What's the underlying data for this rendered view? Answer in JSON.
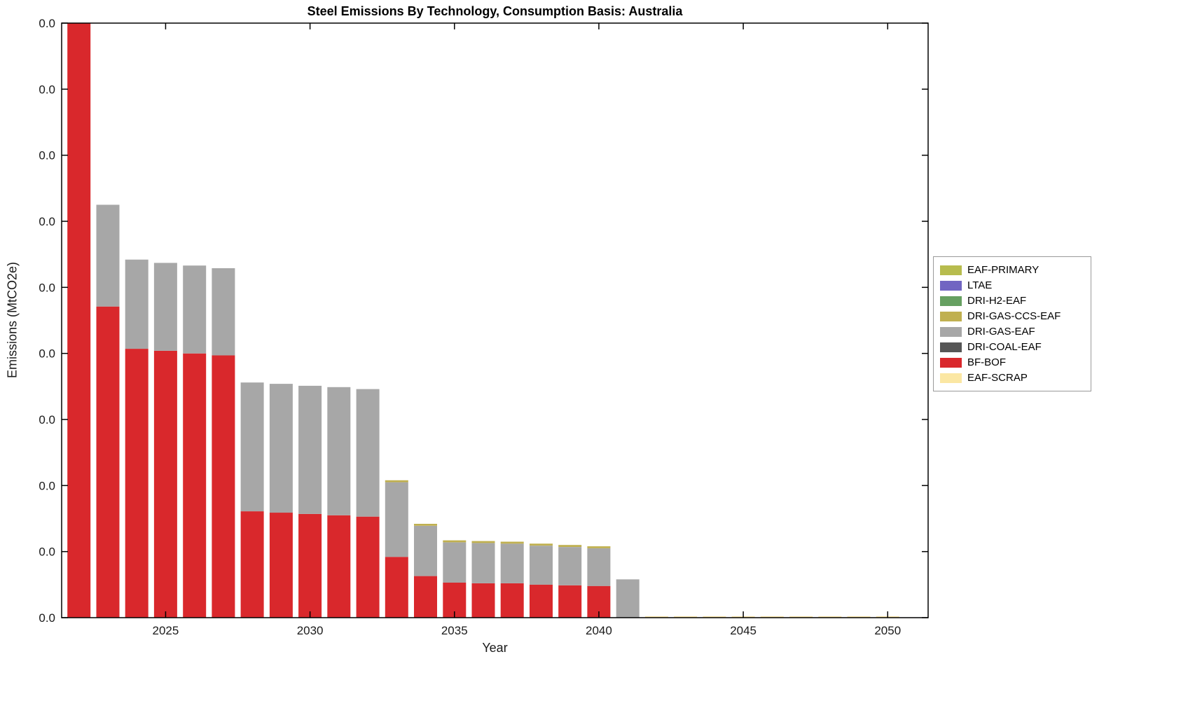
{
  "chart_data": {
    "type": "bar",
    "stacked": true,
    "title": "Steel Emissions By Technology, Consumption Basis: Australia",
    "xlabel": "Year",
    "ylabel": "Emissions (MtCO2e)",
    "x_ticks": [
      2025,
      2030,
      2035,
      2040,
      2045,
      2050
    ],
    "y_tick_labels": [
      "0.0",
      "0.0",
      "0.0",
      "0.0",
      "0.0",
      "0.0",
      "0.0",
      "0.0",
      "0.0",
      "0.0"
    ],
    "x_range": [
      2021.4,
      2051.4
    ],
    "y_range": [
      0,
      9
    ],
    "grid": false,
    "legend_position": "right-outside",
    "years": [
      2022,
      2023,
      2024,
      2025,
      2026,
      2027,
      2028,
      2029,
      2030,
      2031,
      2032,
      2033,
      2034,
      2035,
      2036,
      2037,
      2038,
      2039,
      2040,
      2041,
      2042,
      2043,
      2044,
      2045,
      2046,
      2047,
      2048,
      2049,
      2050
    ],
    "series": [
      {
        "name": "EAF-SCRAP",
        "color": "#fbe7a3",
        "values": [
          0,
          0,
          0,
          0,
          0,
          0,
          0,
          0,
          0,
          0,
          0,
          0,
          0,
          0,
          0,
          0,
          0,
          0,
          0,
          0,
          0.02,
          0.02,
          0.02,
          0.02,
          0.02,
          0.02,
          0.02,
          0.02,
          0.02
        ]
      },
      {
        "name": "BF-BOF",
        "color": "#d9282c",
        "values": [
          9.05,
          4.71,
          4.07,
          4.04,
          4.0,
          3.97,
          1.61,
          1.59,
          1.57,
          1.55,
          1.53,
          0.92,
          0.63,
          0.53,
          0.52,
          0.52,
          0.5,
          0.49,
          0.48,
          0,
          0,
          0,
          0,
          0,
          0,
          0,
          0,
          0,
          0
        ]
      },
      {
        "name": "DRI-COAL-EAF",
        "color": "#565656",
        "values": [
          0,
          0,
          0,
          0,
          0,
          0,
          0,
          0,
          0,
          0,
          0,
          0,
          0,
          0,
          0,
          0,
          0,
          0,
          0,
          0,
          0,
          0,
          0,
          0,
          0,
          0,
          0,
          0,
          0
        ]
      },
      {
        "name": "DRI-GAS-EAF",
        "color": "#a7a7a7",
        "values": [
          0,
          1.54,
          1.35,
          1.33,
          1.33,
          1.32,
          1.95,
          1.95,
          1.94,
          1.94,
          1.93,
          1.13,
          0.76,
          0.61,
          0.61,
          0.6,
          0.59,
          0.58,
          0.57,
          0.58,
          0,
          0,
          0,
          0,
          0,
          0,
          0,
          0,
          0
        ]
      },
      {
        "name": "DRI-GAS-CCS-EAF",
        "color": "#c0b050",
        "values": [
          0,
          0,
          0,
          0,
          0,
          0,
          0,
          0,
          0,
          0,
          0,
          0.03,
          0.03,
          0.03,
          0.03,
          0.03,
          0.03,
          0.03,
          0.03,
          0,
          0,
          0,
          0,
          0,
          0,
          0,
          0,
          0,
          0
        ]
      },
      {
        "name": "DRI-H2-EAF",
        "color": "#66a061",
        "values": [
          0,
          0,
          0,
          0,
          0,
          0,
          0,
          0,
          0,
          0,
          0,
          0,
          0,
          0,
          0,
          0,
          0,
          0,
          0,
          0,
          0,
          0,
          0,
          0,
          0,
          0,
          0,
          0,
          0
        ]
      },
      {
        "name": "LTAE",
        "color": "#7165c2",
        "values": [
          0,
          0,
          0,
          0,
          0,
          0,
          0,
          0,
          0,
          0,
          0,
          0,
          0,
          0,
          0,
          0,
          0,
          0,
          0,
          0,
          0,
          0,
          0,
          0,
          0,
          0,
          0,
          0,
          0
        ]
      },
      {
        "name": "EAF-PRIMARY",
        "color": "#b7bc4e",
        "values": [
          0,
          0,
          0,
          0,
          0,
          0,
          0,
          0,
          0,
          0,
          0,
          0,
          0,
          0,
          0,
          0,
          0,
          0,
          0,
          0,
          0,
          0,
          0,
          0,
          0,
          0,
          0,
          0,
          0
        ]
      }
    ],
    "legend": [
      "EAF-PRIMARY",
      "LTAE",
      "DRI-H2-EAF",
      "DRI-GAS-CCS-EAF",
      "DRI-GAS-EAF",
      "DRI-COAL-EAF",
      "BF-BOF",
      "EAF-SCRAP"
    ]
  }
}
